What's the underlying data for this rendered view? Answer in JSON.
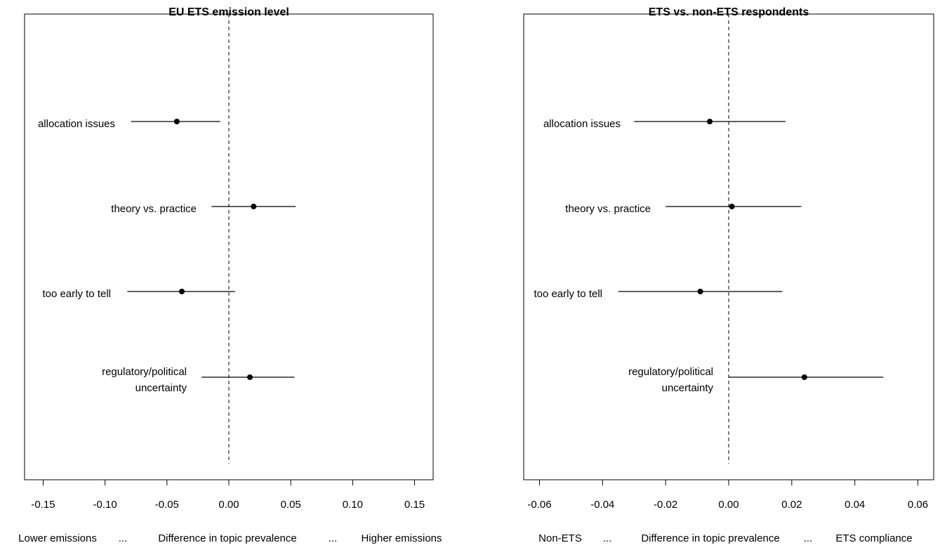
{
  "chart_data": [
    {
      "type": "scatter",
      "title": "EU ETS emission level",
      "xlabel": [
        "Lower emissions",
        "...",
        "Difference in topic prevalence",
        "...",
        "Higher emissions"
      ],
      "ylabel": "",
      "xlim": [
        -0.165,
        0.165
      ],
      "xticks": [
        -0.15,
        -0.1,
        -0.05,
        0.0,
        0.05,
        0.1,
        0.15
      ],
      "xtick_labels": [
        "-0.15",
        "-0.10",
        "-0.05",
        "0.00",
        "0.05",
        "0.10",
        "0.15"
      ],
      "reference_line": 0,
      "grid": false,
      "points": [
        {
          "label": [
            "allocation issues"
          ],
          "estimate": -0.042,
          "lower": -0.079,
          "upper": -0.007
        },
        {
          "label": [
            "theory vs. practice"
          ],
          "estimate": 0.02,
          "lower": -0.014,
          "upper": 0.054
        },
        {
          "label": [
            "too early to tell"
          ],
          "estimate": -0.038,
          "lower": -0.082,
          "upper": 0.005
        },
        {
          "label": [
            "regulatory/political",
            "uncertainty"
          ],
          "estimate": 0.017,
          "lower": -0.022,
          "upper": 0.053
        }
      ]
    },
    {
      "type": "scatter",
      "title": "ETS vs. non-ETS respondents",
      "xlabel": [
        "Non-ETS",
        "...",
        "Difference in topic prevalence",
        "...",
        "ETS compliance"
      ],
      "ylabel": "",
      "xlim": [
        -0.065,
        0.065
      ],
      "xticks": [
        -0.06,
        -0.04,
        -0.02,
        0.0,
        0.02,
        0.04,
        0.06
      ],
      "xtick_labels": [
        "-0.06",
        "-0.04",
        "-0.02",
        "0.00",
        "0.02",
        "0.04",
        "0.06"
      ],
      "reference_line": 0,
      "grid": false,
      "points": [
        {
          "label": [
            "allocation issues"
          ],
          "estimate": -0.006,
          "lower": -0.03,
          "upper": 0.018
        },
        {
          "label": [
            "theory vs. practice"
          ],
          "estimate": 0.001,
          "lower": -0.02,
          "upper": 0.023
        },
        {
          "label": [
            "too early to tell"
          ],
          "estimate": -0.009,
          "lower": -0.035,
          "upper": 0.017
        },
        {
          "label": [
            "regulatory/political",
            "uncertainty"
          ],
          "estimate": 0.024,
          "lower": 0.0,
          "upper": 0.049
        }
      ]
    }
  ]
}
